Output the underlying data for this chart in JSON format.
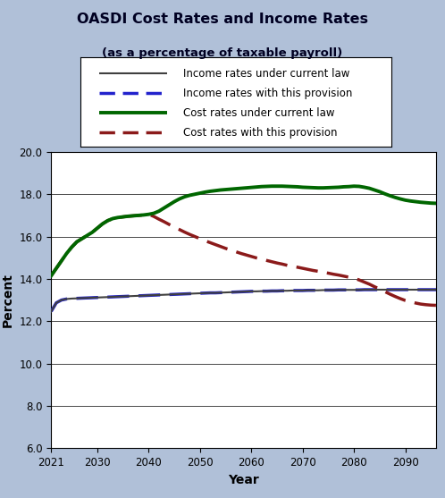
{
  "title": "OASDI Cost Rates and Income Rates",
  "subtitle": "(as a percentage of taxable payroll)",
  "xlabel": "Year",
  "ylabel": "Percent",
  "ylim": [
    6.0,
    20.0
  ],
  "yticks": [
    6.0,
    8.0,
    10.0,
    12.0,
    14.0,
    16.0,
    18.0,
    20.0
  ],
  "xticks": [
    2021,
    2030,
    2040,
    2050,
    2060,
    2070,
    2080,
    2090
  ],
  "xlim": [
    2021,
    2096
  ],
  "bg_color": "#b0c0d8",
  "plot_bg_color": "#ffffff",
  "years": [
    2021,
    2022,
    2023,
    2024,
    2025,
    2026,
    2027,
    2028,
    2029,
    2030,
    2031,
    2032,
    2033,
    2034,
    2035,
    2036,
    2037,
    2038,
    2039,
    2040,
    2041,
    2042,
    2043,
    2044,
    2045,
    2046,
    2047,
    2048,
    2049,
    2050,
    2051,
    2052,
    2053,
    2054,
    2055,
    2056,
    2057,
    2058,
    2059,
    2060,
    2061,
    2062,
    2063,
    2064,
    2065,
    2066,
    2067,
    2068,
    2069,
    2070,
    2071,
    2072,
    2073,
    2074,
    2075,
    2076,
    2077,
    2078,
    2079,
    2080,
    2081,
    2082,
    2083,
    2084,
    2085,
    2086,
    2087,
    2088,
    2089,
    2090,
    2091,
    2092,
    2093,
    2094,
    2095,
    2096
  ],
  "income_current_law": [
    12.46,
    12.87,
    13.0,
    13.05,
    13.07,
    13.08,
    13.09,
    13.1,
    13.11,
    13.12,
    13.13,
    13.14,
    13.15,
    13.16,
    13.17,
    13.18,
    13.19,
    13.2,
    13.21,
    13.22,
    13.23,
    13.24,
    13.25,
    13.26,
    13.27,
    13.28,
    13.29,
    13.3,
    13.31,
    13.32,
    13.33,
    13.34,
    13.34,
    13.35,
    13.36,
    13.37,
    13.38,
    13.39,
    13.4,
    13.41,
    13.41,
    13.42,
    13.42,
    13.43,
    13.43,
    13.44,
    13.44,
    13.45,
    13.45,
    13.45,
    13.46,
    13.46,
    13.46,
    13.47,
    13.47,
    13.47,
    13.48,
    13.48,
    13.48,
    13.48,
    13.48,
    13.49,
    13.49,
    13.49,
    13.49,
    13.49,
    13.49,
    13.49,
    13.49,
    13.49,
    13.49,
    13.49,
    13.49,
    13.49,
    13.49,
    13.49
  ],
  "income_provision": [
    12.46,
    12.87,
    13.0,
    13.05,
    13.07,
    13.08,
    13.09,
    13.1,
    13.11,
    13.12,
    13.13,
    13.14,
    13.15,
    13.16,
    13.17,
    13.18,
    13.19,
    13.2,
    13.21,
    13.22,
    13.23,
    13.24,
    13.25,
    13.26,
    13.27,
    13.28,
    13.29,
    13.3,
    13.31,
    13.32,
    13.33,
    13.34,
    13.34,
    13.35,
    13.36,
    13.37,
    13.38,
    13.39,
    13.4,
    13.41,
    13.41,
    13.42,
    13.42,
    13.43,
    13.43,
    13.44,
    13.44,
    13.45,
    13.45,
    13.45,
    13.46,
    13.46,
    13.46,
    13.47,
    13.47,
    13.47,
    13.48,
    13.48,
    13.48,
    13.48,
    13.48,
    13.49,
    13.49,
    13.49,
    13.49,
    13.49,
    13.49,
    13.49,
    13.49,
    13.49,
    13.49,
    13.49,
    13.49,
    13.49,
    13.49,
    13.49
  ],
  "cost_current_law": [
    14.15,
    14.5,
    14.85,
    15.2,
    15.5,
    15.75,
    15.9,
    16.05,
    16.2,
    16.4,
    16.6,
    16.75,
    16.85,
    16.9,
    16.93,
    16.96,
    16.98,
    17.0,
    17.02,
    17.05,
    17.1,
    17.2,
    17.35,
    17.5,
    17.65,
    17.78,
    17.88,
    17.95,
    18.0,
    18.05,
    18.1,
    18.14,
    18.17,
    18.2,
    18.22,
    18.24,
    18.26,
    18.28,
    18.3,
    18.32,
    18.34,
    18.36,
    18.37,
    18.38,
    18.38,
    18.38,
    18.37,
    18.36,
    18.35,
    18.33,
    18.32,
    18.31,
    18.3,
    18.3,
    18.31,
    18.32,
    18.33,
    18.35,
    18.36,
    18.38,
    18.37,
    18.33,
    18.28,
    18.2,
    18.12,
    18.02,
    17.93,
    17.85,
    17.78,
    17.72,
    17.68,
    17.65,
    17.62,
    17.6,
    17.58,
    17.57
  ],
  "cost_provision": [
    14.15,
    14.5,
    14.85,
    15.2,
    15.5,
    15.75,
    15.9,
    16.05,
    16.2,
    16.4,
    16.6,
    16.75,
    16.85,
    16.9,
    16.93,
    16.96,
    16.98,
    17.0,
    17.02,
    17.05,
    16.95,
    16.82,
    16.7,
    16.57,
    16.45,
    16.33,
    16.21,
    16.1,
    16.0,
    15.9,
    15.8,
    15.71,
    15.62,
    15.53,
    15.44,
    15.36,
    15.28,
    15.2,
    15.13,
    15.06,
    14.99,
    14.93,
    14.87,
    14.81,
    14.75,
    14.7,
    14.64,
    14.59,
    14.55,
    14.5,
    14.45,
    14.4,
    14.36,
    14.31,
    14.27,
    14.22,
    14.18,
    14.13,
    14.08,
    14.03,
    13.95,
    13.85,
    13.75,
    13.63,
    13.52,
    13.4,
    13.28,
    13.17,
    13.07,
    12.98,
    12.92,
    12.86,
    12.81,
    12.78,
    12.76,
    12.75
  ],
  "income_current_law_color": "#404040",
  "income_provision_color": "#2222cc",
  "cost_current_law_color": "#006600",
  "cost_provision_color": "#8b1a1a",
  "legend_labels": [
    "Income rates under current law",
    "Income rates with this provision",
    "Cost rates under current law",
    "Cost rates with this provision"
  ]
}
